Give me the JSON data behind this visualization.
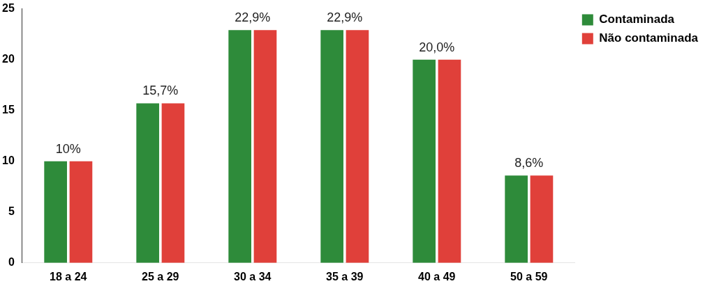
{
  "chart_data": {
    "type": "bar",
    "categories": [
      "18 a 24",
      "25 a 29",
      "30 a 34",
      "35 a 39",
      "40 a 49",
      "50 a 59"
    ],
    "series": [
      {
        "name": "Contaminada",
        "color": "#2e8b3a",
        "values": [
          10,
          15.7,
          22.9,
          22.9,
          20.0,
          8.6
        ],
        "value_labels": [
          "10%",
          "15,7%",
          "22,9%",
          "22,9%",
          "20,0%",
          "8,6%"
        ]
      },
      {
        "name": "Não contaminada",
        "color": "#e0403a",
        "values": [
          10,
          15.7,
          22.9,
          22.9,
          20.0,
          8.6
        ]
      }
    ],
    "ylim": [
      0,
      25
    ],
    "yticks": [
      0,
      5,
      10,
      15,
      20,
      25
    ],
    "grid": false,
    "legend": "top right"
  }
}
